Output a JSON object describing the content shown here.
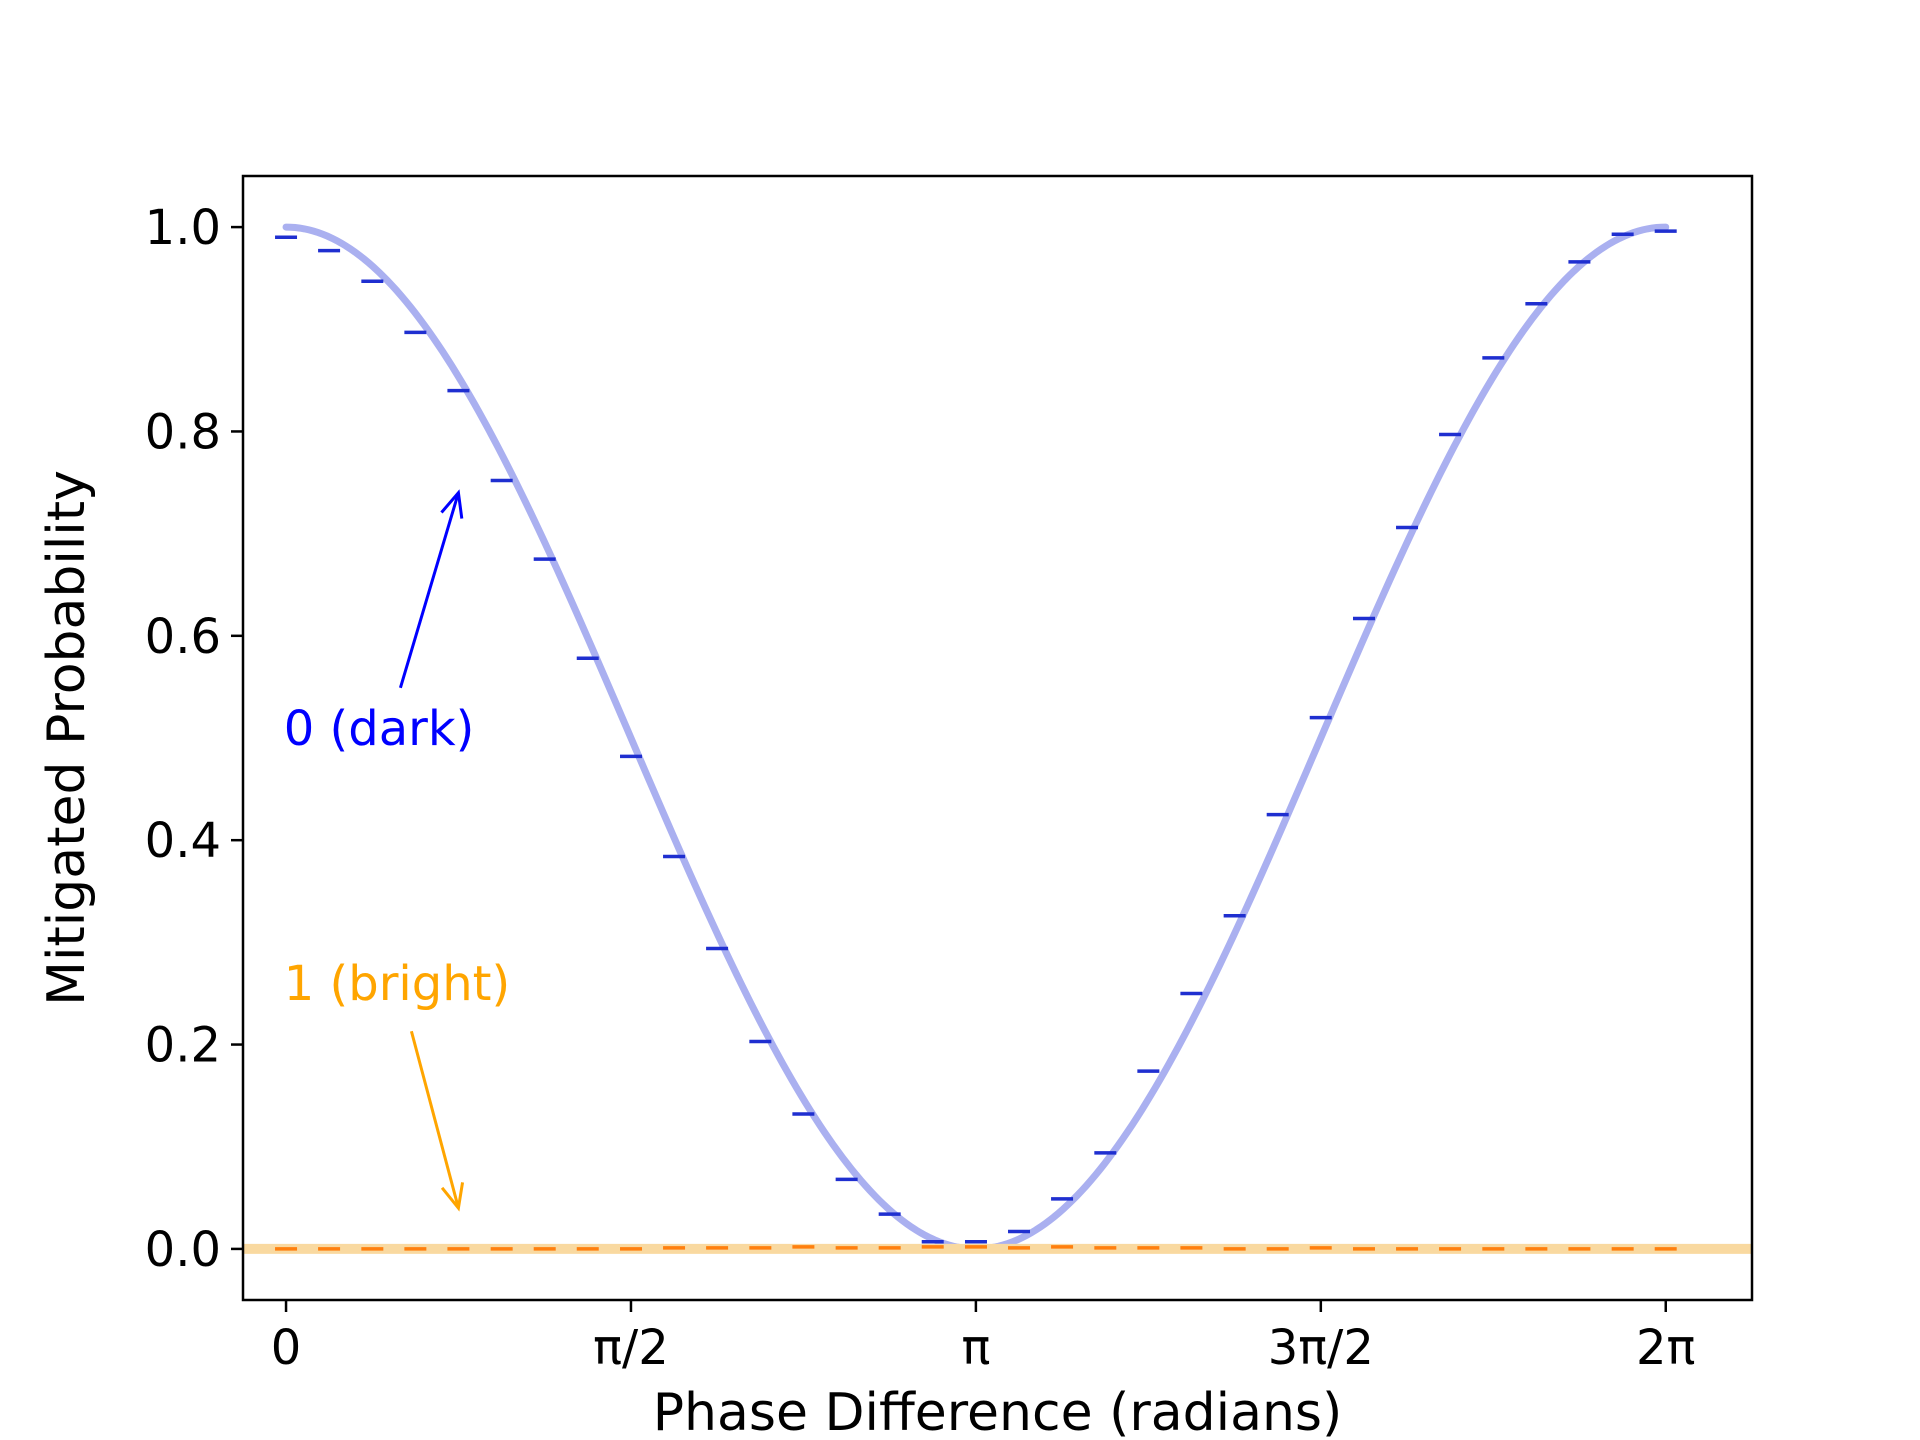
{
  "chart_data": {
    "type": "scatter",
    "title": "",
    "xlabel": "Phase Difference (radians)",
    "ylabel": "Mitigated Probability",
    "xlim": [
      -0.196,
      6.676
    ],
    "ylim": [
      -0.05,
      1.05
    ],
    "x_ticks": [
      {
        "value": 0,
        "label": "0"
      },
      {
        "value": 1.5708,
        "label": "π/2"
      },
      {
        "value": 3.1416,
        "label": "π"
      },
      {
        "value": 4.7124,
        "label": "3π/2"
      },
      {
        "value": 6.2832,
        "label": "2π"
      }
    ],
    "y_ticks": [
      {
        "value": 0.0,
        "label": "0.0"
      },
      {
        "value": 0.2,
        "label": "0.2"
      },
      {
        "value": 0.4,
        "label": "0.4"
      },
      {
        "value": 0.6,
        "label": "0.6"
      },
      {
        "value": 0.8,
        "label": "0.8"
      },
      {
        "value": 1.0,
        "label": "1.0"
      }
    ],
    "grid": false,
    "colors": {
      "dark_points": "#1f2fd0",
      "dark_curve": "#aab0f0",
      "bright_points": "#ff7f0e",
      "bright_curve": "#f9d9a0",
      "dark_annotation": "#0000ff",
      "bright_annotation": "#ffa500"
    },
    "series": [
      {
        "name": "0 (dark)",
        "x": [
          0,
          0.196,
          0.393,
          0.589,
          0.785,
          0.982,
          1.178,
          1.374,
          1.571,
          1.767,
          1.963,
          2.16,
          2.356,
          2.553,
          2.749,
          2.945,
          3.142,
          3.338,
          3.534,
          3.731,
          3.927,
          4.123,
          4.32,
          4.516,
          4.712,
          4.909,
          5.105,
          5.301,
          5.498,
          5.694,
          5.89,
          6.087,
          6.283
        ],
        "y": [
          0.99,
          0.977,
          0.947,
          0.897,
          0.84,
          0.752,
          0.675,
          0.578,
          0.482,
          0.384,
          0.294,
          0.203,
          0.132,
          0.068,
          0.034,
          0.007,
          0.007,
          0.017,
          0.049,
          0.094,
          0.174,
          0.25,
          0.326,
          0.425,
          0.52,
          0.617,
          0.706,
          0.797,
          0.872,
          0.925,
          0.966,
          0.993,
          0.996
        ]
      },
      {
        "name": "1 (bright)",
        "x": [
          0,
          0.196,
          0.393,
          0.589,
          0.785,
          0.982,
          1.178,
          1.374,
          1.571,
          1.767,
          1.963,
          2.16,
          2.356,
          2.553,
          2.749,
          2.945,
          3.142,
          3.338,
          3.534,
          3.731,
          3.927,
          4.123,
          4.32,
          4.516,
          4.712,
          4.909,
          5.105,
          5.301,
          5.498,
          5.694,
          5.89,
          6.087,
          6.283
        ],
        "y": [
          0.0,
          0.0,
          0.0,
          0.0,
          0.0,
          0.0,
          0.0,
          0.0,
          0.0,
          0.001,
          0.001,
          0.001,
          0.002,
          0.001,
          0.001,
          0.002,
          0.002,
          0.001,
          0.002,
          0.001,
          0.001,
          0.001,
          0.0,
          0.0,
          0.001,
          0.0,
          0.0,
          0.0,
          0.0,
          0.0,
          0.0,
          0.0,
          0.0
        ]
      }
    ],
    "annotations": [
      {
        "text": "0 (dark)",
        "series": "0 (dark)",
        "text_x": 0.8,
        "text_y": 0.51,
        "arrow_x": 0.785,
        "arrow_y": 0.74
      },
      {
        "text": "1 (bright)",
        "series": "1 (bright)",
        "text_x": 0.8,
        "text_y": 0.26,
        "arrow_x": 0.785,
        "arrow_y": 0.04
      }
    ]
  }
}
